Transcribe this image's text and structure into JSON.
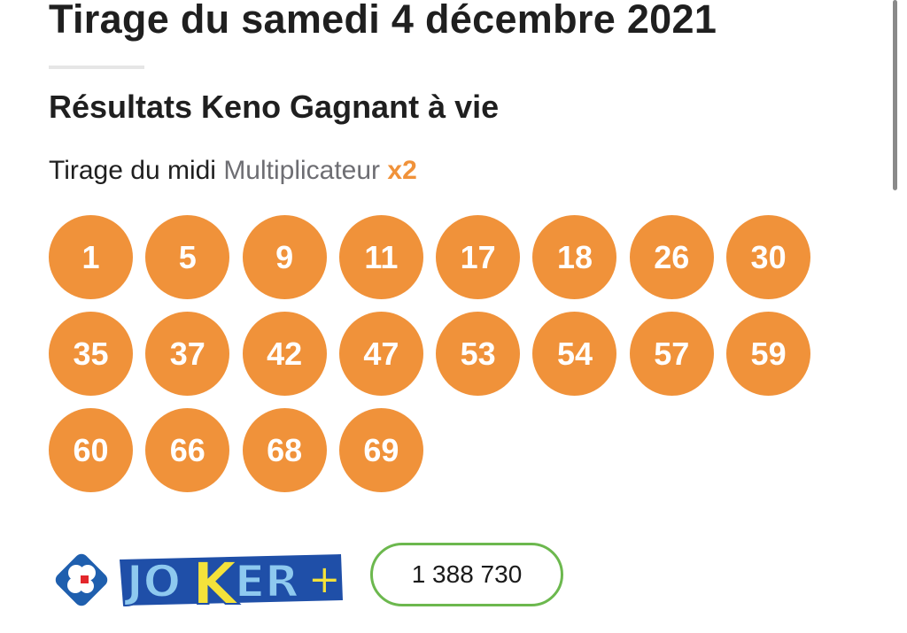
{
  "header": {
    "title": "Tirage du samedi 4 décembre 2021"
  },
  "section": {
    "title": "Résultats Keno Gagnant à vie"
  },
  "draw": {
    "label": "Tirage du midi",
    "multiplier_label": "Multiplicateur",
    "multiplier_value": "x2"
  },
  "numbers": [
    "1",
    "5",
    "9",
    "11",
    "17",
    "18",
    "26",
    "30",
    "35",
    "37",
    "42",
    "47",
    "53",
    "54",
    "57",
    "59",
    "60",
    "66",
    "68",
    "69"
  ],
  "joker": {
    "logo_text": "JOKER+",
    "number": "1 388 730"
  },
  "colors": {
    "ball": "#f0923a",
    "accent": "#f0923a",
    "joker_border": "#6cb84e"
  }
}
